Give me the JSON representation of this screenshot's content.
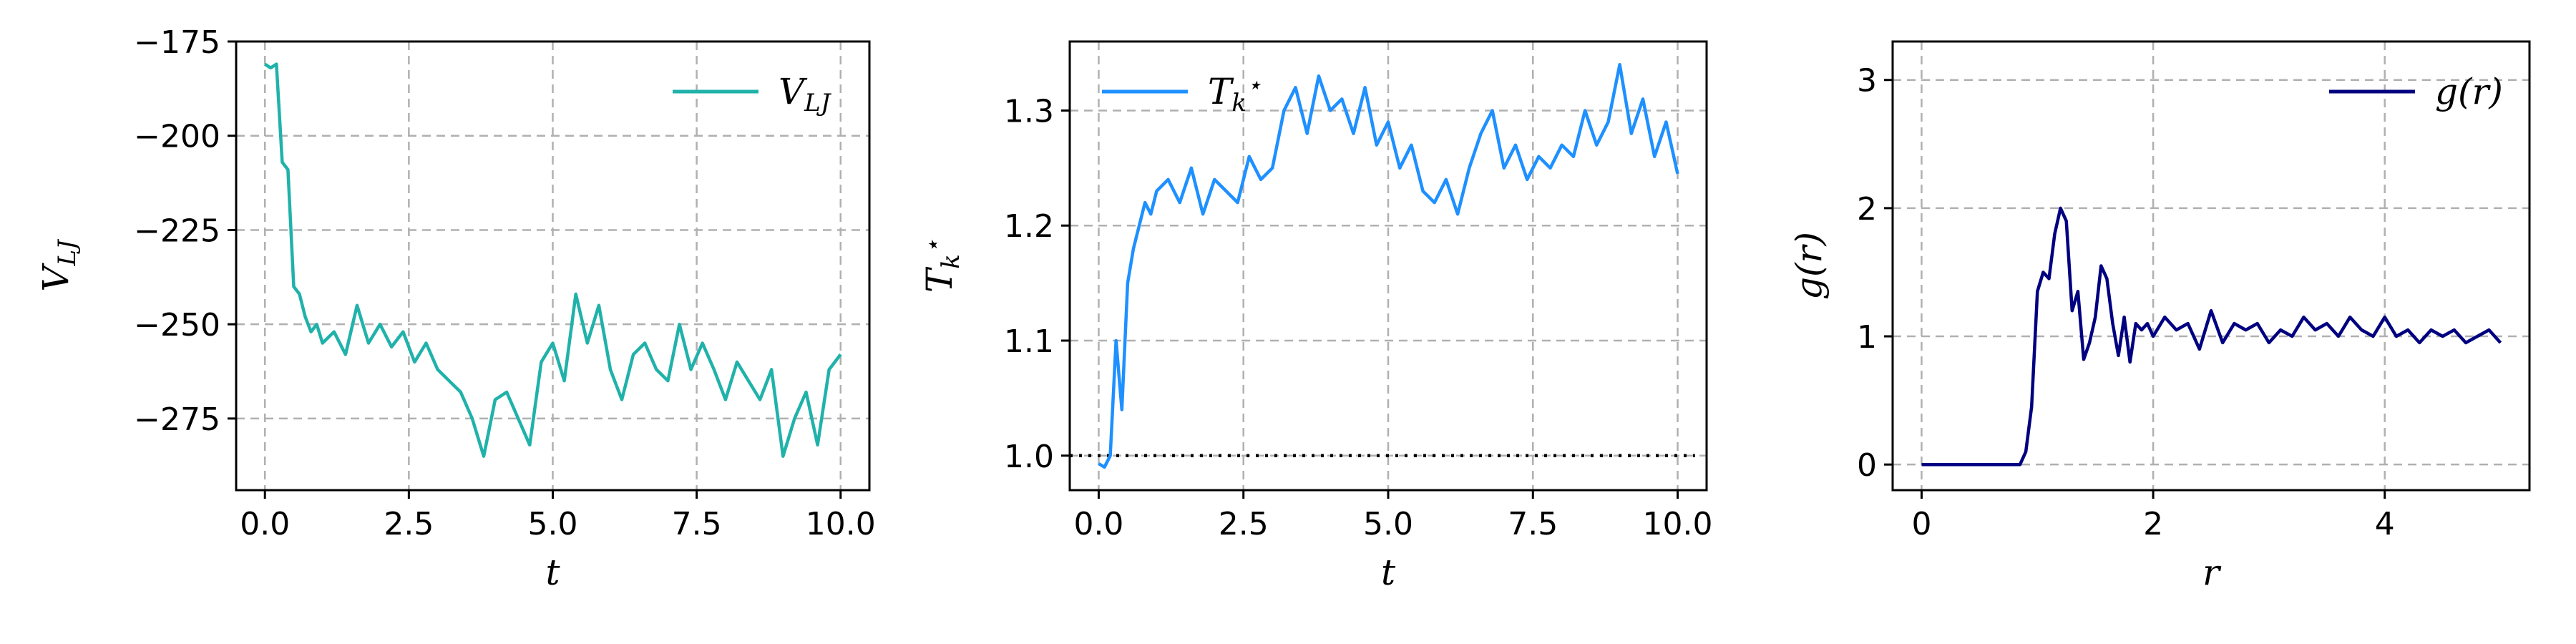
{
  "chart_data": [
    {
      "type": "line",
      "xlabel": "t",
      "ylabel": "V_LJ",
      "xlim": [
        -0.5,
        10.5
      ],
      "ylim": [
        -294,
        -175
      ],
      "xticks": [
        0.0,
        2.5,
        5.0,
        7.5,
        10.0
      ],
      "xtick_labels": [
        "0.0",
        "2.5",
        "5.0",
        "7.5",
        "10.0"
      ],
      "yticks": [
        -175,
        -200,
        -225,
        -250,
        -275
      ],
      "ytick_labels": [
        "−175",
        "−200",
        "−225",
        "−250",
        "−275"
      ],
      "grid": true,
      "legend_position": "top-right",
      "series": [
        {
          "name": "V_LJ",
          "color": "#20b2aa",
          "x": [
            0.0,
            0.1,
            0.2,
            0.3,
            0.4,
            0.5,
            0.6,
            0.7,
            0.8,
            0.9,
            1.0,
            1.2,
            1.4,
            1.6,
            1.8,
            2.0,
            2.2,
            2.4,
            2.6,
            2.8,
            3.0,
            3.2,
            3.4,
            3.6,
            3.8,
            4.0,
            4.2,
            4.4,
            4.6,
            4.8,
            5.0,
            5.2,
            5.4,
            5.6,
            5.8,
            6.0,
            6.2,
            6.4,
            6.6,
            6.8,
            7.0,
            7.2,
            7.4,
            7.6,
            7.8,
            8.0,
            8.2,
            8.4,
            8.6,
            8.8,
            9.0,
            9.2,
            9.4,
            9.6,
            9.8,
            10.0
          ],
          "values": [
            -181,
            -182,
            -181,
            -207,
            -209,
            -240,
            -242,
            -248,
            -252,
            -250,
            -255,
            -252,
            -258,
            -245,
            -255,
            -250,
            -256,
            -252,
            -260,
            -255,
            -262,
            -265,
            -268,
            -275,
            -285,
            -270,
            -268,
            -275,
            -282,
            -260,
            -255,
            -265,
            -242,
            -255,
            -245,
            -262,
            -270,
            -258,
            -255,
            -262,
            -265,
            -250,
            -262,
            -255,
            -262,
            -270,
            -260,
            -265,
            -270,
            -262,
            -285,
            -275,
            -268,
            -282,
            -262,
            -258
          ]
        }
      ]
    },
    {
      "type": "line",
      "xlabel": "t",
      "ylabel": "T_k*",
      "xlim": [
        -0.5,
        10.5
      ],
      "ylim": [
        0.97,
        1.36
      ],
      "xticks": [
        0.0,
        2.5,
        5.0,
        7.5,
        10.0
      ],
      "xtick_labels": [
        "0.0",
        "2.5",
        "5.0",
        "7.5",
        "10.0"
      ],
      "yticks": [
        1.0,
        1.1,
        1.2,
        1.3
      ],
      "ytick_labels": [
        "1.0",
        "1.1",
        "1.2",
        "1.3"
      ],
      "grid": true,
      "legend_position": "top-left",
      "reference_line": {
        "y": 1.0,
        "style": "dotted",
        "color": "#000000"
      },
      "series": [
        {
          "name": "T_k*",
          "color": "#1e90ff",
          "x": [
            0.0,
            0.1,
            0.2,
            0.3,
            0.4,
            0.5,
            0.6,
            0.7,
            0.8,
            0.9,
            1.0,
            1.2,
            1.4,
            1.6,
            1.8,
            2.0,
            2.2,
            2.4,
            2.6,
            2.8,
            3.0,
            3.2,
            3.4,
            3.6,
            3.8,
            4.0,
            4.2,
            4.4,
            4.6,
            4.8,
            5.0,
            5.2,
            5.4,
            5.6,
            5.8,
            6.0,
            6.2,
            6.4,
            6.6,
            6.8,
            7.0,
            7.2,
            7.4,
            7.6,
            7.8,
            8.0,
            8.2,
            8.4,
            8.6,
            8.8,
            9.0,
            9.2,
            9.4,
            9.6,
            9.8,
            10.0
          ],
          "values": [
            0.993,
            0.99,
            1.0,
            1.1,
            1.04,
            1.15,
            1.18,
            1.2,
            1.22,
            1.21,
            1.23,
            1.24,
            1.22,
            1.25,
            1.21,
            1.24,
            1.23,
            1.22,
            1.26,
            1.24,
            1.25,
            1.3,
            1.32,
            1.28,
            1.33,
            1.3,
            1.31,
            1.28,
            1.32,
            1.27,
            1.29,
            1.25,
            1.27,
            1.23,
            1.22,
            1.24,
            1.21,
            1.25,
            1.28,
            1.3,
            1.25,
            1.27,
            1.24,
            1.26,
            1.25,
            1.27,
            1.26,
            1.3,
            1.27,
            1.29,
            1.34,
            1.28,
            1.31,
            1.26,
            1.29,
            1.245
          ]
        }
      ]
    },
    {
      "type": "line",
      "xlabel": "r",
      "ylabel": "g(r)",
      "xlim": [
        -0.25,
        5.25
      ],
      "ylim": [
        -0.2,
        3.3
      ],
      "xticks": [
        0,
        2,
        4
      ],
      "xtick_labels": [
        "0",
        "2",
        "4"
      ],
      "yticks": [
        0,
        1,
        2,
        3
      ],
      "ytick_labels": [
        "0",
        "1",
        "2",
        "3"
      ],
      "grid": true,
      "legend_position": "top-right",
      "series": [
        {
          "name": "g(r)",
          "color": "#000080",
          "x": [
            0.0,
            0.85,
            0.9,
            0.95,
            1.0,
            1.05,
            1.1,
            1.15,
            1.2,
            1.25,
            1.3,
            1.35,
            1.4,
            1.45,
            1.5,
            1.55,
            1.6,
            1.65,
            1.7,
            1.75,
            1.8,
            1.85,
            1.9,
            1.95,
            2.0,
            2.1,
            2.2,
            2.3,
            2.4,
            2.5,
            2.6,
            2.7,
            2.8,
            2.9,
            3.0,
            3.1,
            3.2,
            3.3,
            3.4,
            3.5,
            3.6,
            3.7,
            3.8,
            3.9,
            4.0,
            4.1,
            4.2,
            4.3,
            4.4,
            4.5,
            4.6,
            4.7,
            4.8,
            4.9,
            5.0
          ],
          "values": [
            0.0,
            0.0,
            0.1,
            0.45,
            1.35,
            1.5,
            1.45,
            1.8,
            2.0,
            1.9,
            1.2,
            1.35,
            0.82,
            0.95,
            1.15,
            1.55,
            1.45,
            1.1,
            0.85,
            1.15,
            0.8,
            1.1,
            1.05,
            1.1,
            1.0,
            1.15,
            1.05,
            1.1,
            0.9,
            1.2,
            0.95,
            1.1,
            1.05,
            1.1,
            0.95,
            1.05,
            1.0,
            1.15,
            1.05,
            1.1,
            1.0,
            1.15,
            1.05,
            1.0,
            1.15,
            1.0,
            1.05,
            0.95,
            1.05,
            1.0,
            1.05,
            0.95,
            1.0,
            1.05,
            0.95
          ]
        }
      ]
    }
  ]
}
